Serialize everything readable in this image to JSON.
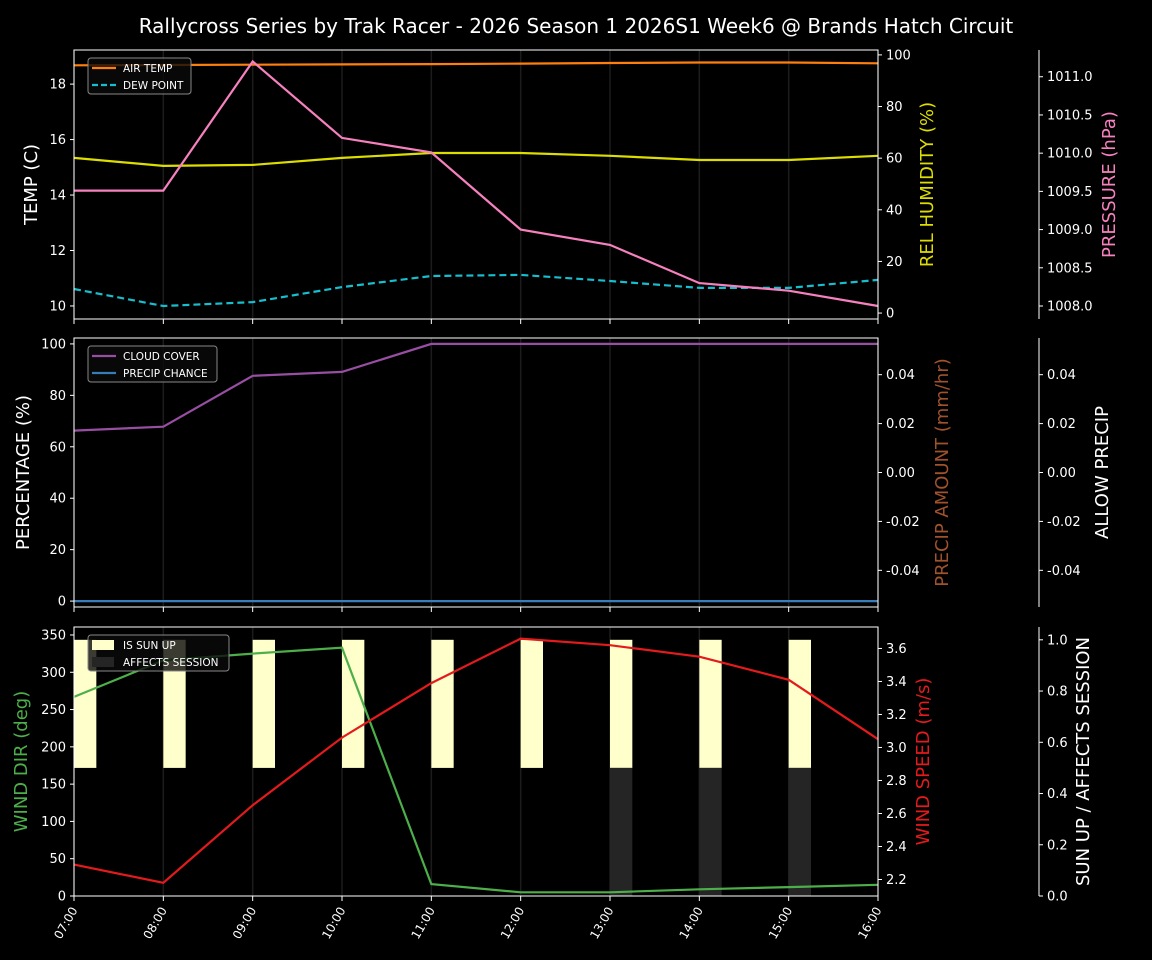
{
  "title": "Rallycross Series by Trak Racer - 2026 Season 1 2026S1 Week6 @ Brands Hatch Circuit",
  "chart_data": [
    {
      "type": "line",
      "x": [
        "07:00",
        "08:00",
        "09:00",
        "10:00",
        "11:00",
        "12:00",
        "13:00",
        "14:00",
        "15:00",
        "16:00"
      ],
      "legend": "top-left",
      "axes": [
        {
          "id": "temp",
          "side": "left",
          "label": "TEMP (C)",
          "label_color": "#ffffff",
          "lim": [
            9.53,
            19.23
          ],
          "ticks": [
            10,
            12,
            14,
            16,
            18
          ],
          "decimals": 0
        },
        {
          "id": "hum",
          "side": "right",
          "label": "REL HUMIDITY (%)",
          "label_color": "#dddd00",
          "lim": [
            -2.3,
            101.9
          ],
          "ticks": [
            0,
            20,
            40,
            60,
            80,
            100
          ],
          "decimals": 0
        },
        {
          "id": "pres",
          "side": "outer",
          "label": "PRESSURE (hPa)",
          "label_color": "#f781bf",
          "lim": [
            1007.83,
            1011.35
          ],
          "ticks": [
            1008.0,
            1008.5,
            1009.0,
            1009.5,
            1010.0,
            1010.5,
            1011.0
          ],
          "decimals": 1
        }
      ],
      "series": [
        {
          "name": "AIR TEMP",
          "axis": "temp",
          "color": "#ff7f0e",
          "dash": false,
          "legend": true,
          "values": [
            18.68,
            18.69,
            18.7,
            18.71,
            18.72,
            18.74,
            18.76,
            18.78,
            18.78,
            18.75
          ]
        },
        {
          "name": "DEW POINT",
          "axis": "temp",
          "color": "#17becf",
          "dash": true,
          "legend": true,
          "values": [
            10.61,
            10.0,
            10.14,
            10.68,
            11.08,
            11.12,
            10.9,
            10.65,
            10.65,
            10.94
          ]
        },
        {
          "axis": "hum",
          "color": "#dddd00",
          "dash": false,
          "legend": false,
          "values": [
            60.1,
            57.0,
            57.4,
            60.1,
            62.0,
            62.0,
            60.9,
            59.3,
            59.3,
            60.9
          ]
        },
        {
          "axis": "pres",
          "color": "#f781bf",
          "dash": false,
          "legend": false,
          "values": [
            1009.51,
            1009.51,
            1011.2,
            1010.2,
            1010.01,
            1009.0,
            1008.8,
            1008.3,
            1008.2,
            1008.0
          ]
        }
      ]
    },
    {
      "type": "line",
      "x": [
        "07:00",
        "08:00",
        "09:00",
        "10:00",
        "11:00",
        "12:00",
        "13:00",
        "14:00",
        "15:00",
        "16:00"
      ],
      "legend": "top-left",
      "axes": [
        {
          "id": "pct",
          "side": "left",
          "label": "PERCENTAGE (%)",
          "label_color": "#ffffff",
          "lim": [
            -2.3,
            102.3
          ],
          "ticks": [
            0,
            20,
            40,
            60,
            80,
            100
          ],
          "decimals": 0
        },
        {
          "id": "amt",
          "side": "right",
          "label": "PRECIP AMOUNT (mm/hr)",
          "label_color": "#a0522d",
          "lim": [
            -0.055,
            0.055
          ],
          "ticks": [
            -0.04,
            -0.02,
            0.0,
            0.02,
            0.04
          ],
          "decimals": 2
        },
        {
          "id": "allow",
          "side": "outer",
          "label": "ALLOW PRECIP",
          "label_color": "#ffffff",
          "lim": [
            -0.055,
            0.055
          ],
          "ticks": [
            -0.04,
            -0.02,
            0.0,
            0.02,
            0.04
          ],
          "decimals": 2
        }
      ],
      "series": [
        {
          "name": "CLOUD COVER",
          "axis": "pct",
          "color": "#984ea3",
          "dash": false,
          "legend": true,
          "values": [
            66.3,
            67.8,
            87.6,
            89.1,
            100,
            100,
            100,
            100,
            100,
            100
          ]
        },
        {
          "name": "PRECIP CHANCE",
          "axis": "pct",
          "color": "#377eb8",
          "dash": false,
          "legend": true,
          "values": [
            0,
            0,
            0,
            0,
            0,
            0,
            0,
            0,
            0,
            0
          ]
        }
      ]
    },
    {
      "type": "line",
      "x": [
        "07:00",
        "08:00",
        "09:00",
        "10:00",
        "11:00",
        "12:00",
        "13:00",
        "14:00",
        "15:00",
        "16:00"
      ],
      "legend": "top-left",
      "axes": [
        {
          "id": "dir",
          "side": "left",
          "label": "WIND DIR (deg)",
          "label_color": "#4daf4a",
          "lim": [
            0,
            360.7
          ],
          "ticks": [
            0,
            50,
            100,
            150,
            200,
            250,
            300,
            350
          ],
          "decimals": 0
        },
        {
          "id": "spd",
          "side": "right",
          "label": "WIND SPEED (m/s)",
          "label_color": "#e41a1c",
          "lim": [
            2.1,
            3.73
          ],
          "ticks": [
            2.2,
            2.4,
            2.6,
            2.8,
            3.0,
            3.2,
            3.4,
            3.6
          ],
          "decimals": 1
        },
        {
          "id": "sun",
          "side": "outer",
          "label": "SUN UP / AFFECTS SESSION",
          "label_color": "#ffffff",
          "lim": [
            0,
            1.05
          ],
          "ticks": [
            0.0,
            0.2,
            0.4,
            0.6,
            0.8,
            1.0
          ],
          "decimals": 1
        }
      ],
      "bars": [
        {
          "name": "IS SUN UP",
          "axis": "sun",
          "color": "#ffffcc",
          "base": 0.5,
          "values": [
            0.5,
            0.5,
            0.5,
            0.5,
            0.5,
            0.5,
            0.5,
            0.5,
            0.5,
            0
          ]
        },
        {
          "name": "AFFECTS SESSION",
          "axis": "sun",
          "color": "#252525",
          "base": 0,
          "values": [
            0,
            0,
            0,
            0,
            0,
            0,
            0.5,
            0.5,
            0.5,
            0
          ]
        }
      ],
      "series": [
        {
          "axis": "dir",
          "color": "#4daf4a",
          "dash": false,
          "legend": false,
          "values": [
            267,
            316,
            325,
            333,
            16,
            5,
            5,
            9,
            12,
            15
          ]
        },
        {
          "axis": "spd",
          "color": "#e41a1c",
          "dash": false,
          "legend": false,
          "values": [
            2.29,
            2.18,
            2.65,
            3.06,
            3.39,
            3.66,
            3.62,
            3.55,
            3.41,
            3.05
          ]
        }
      ]
    }
  ]
}
